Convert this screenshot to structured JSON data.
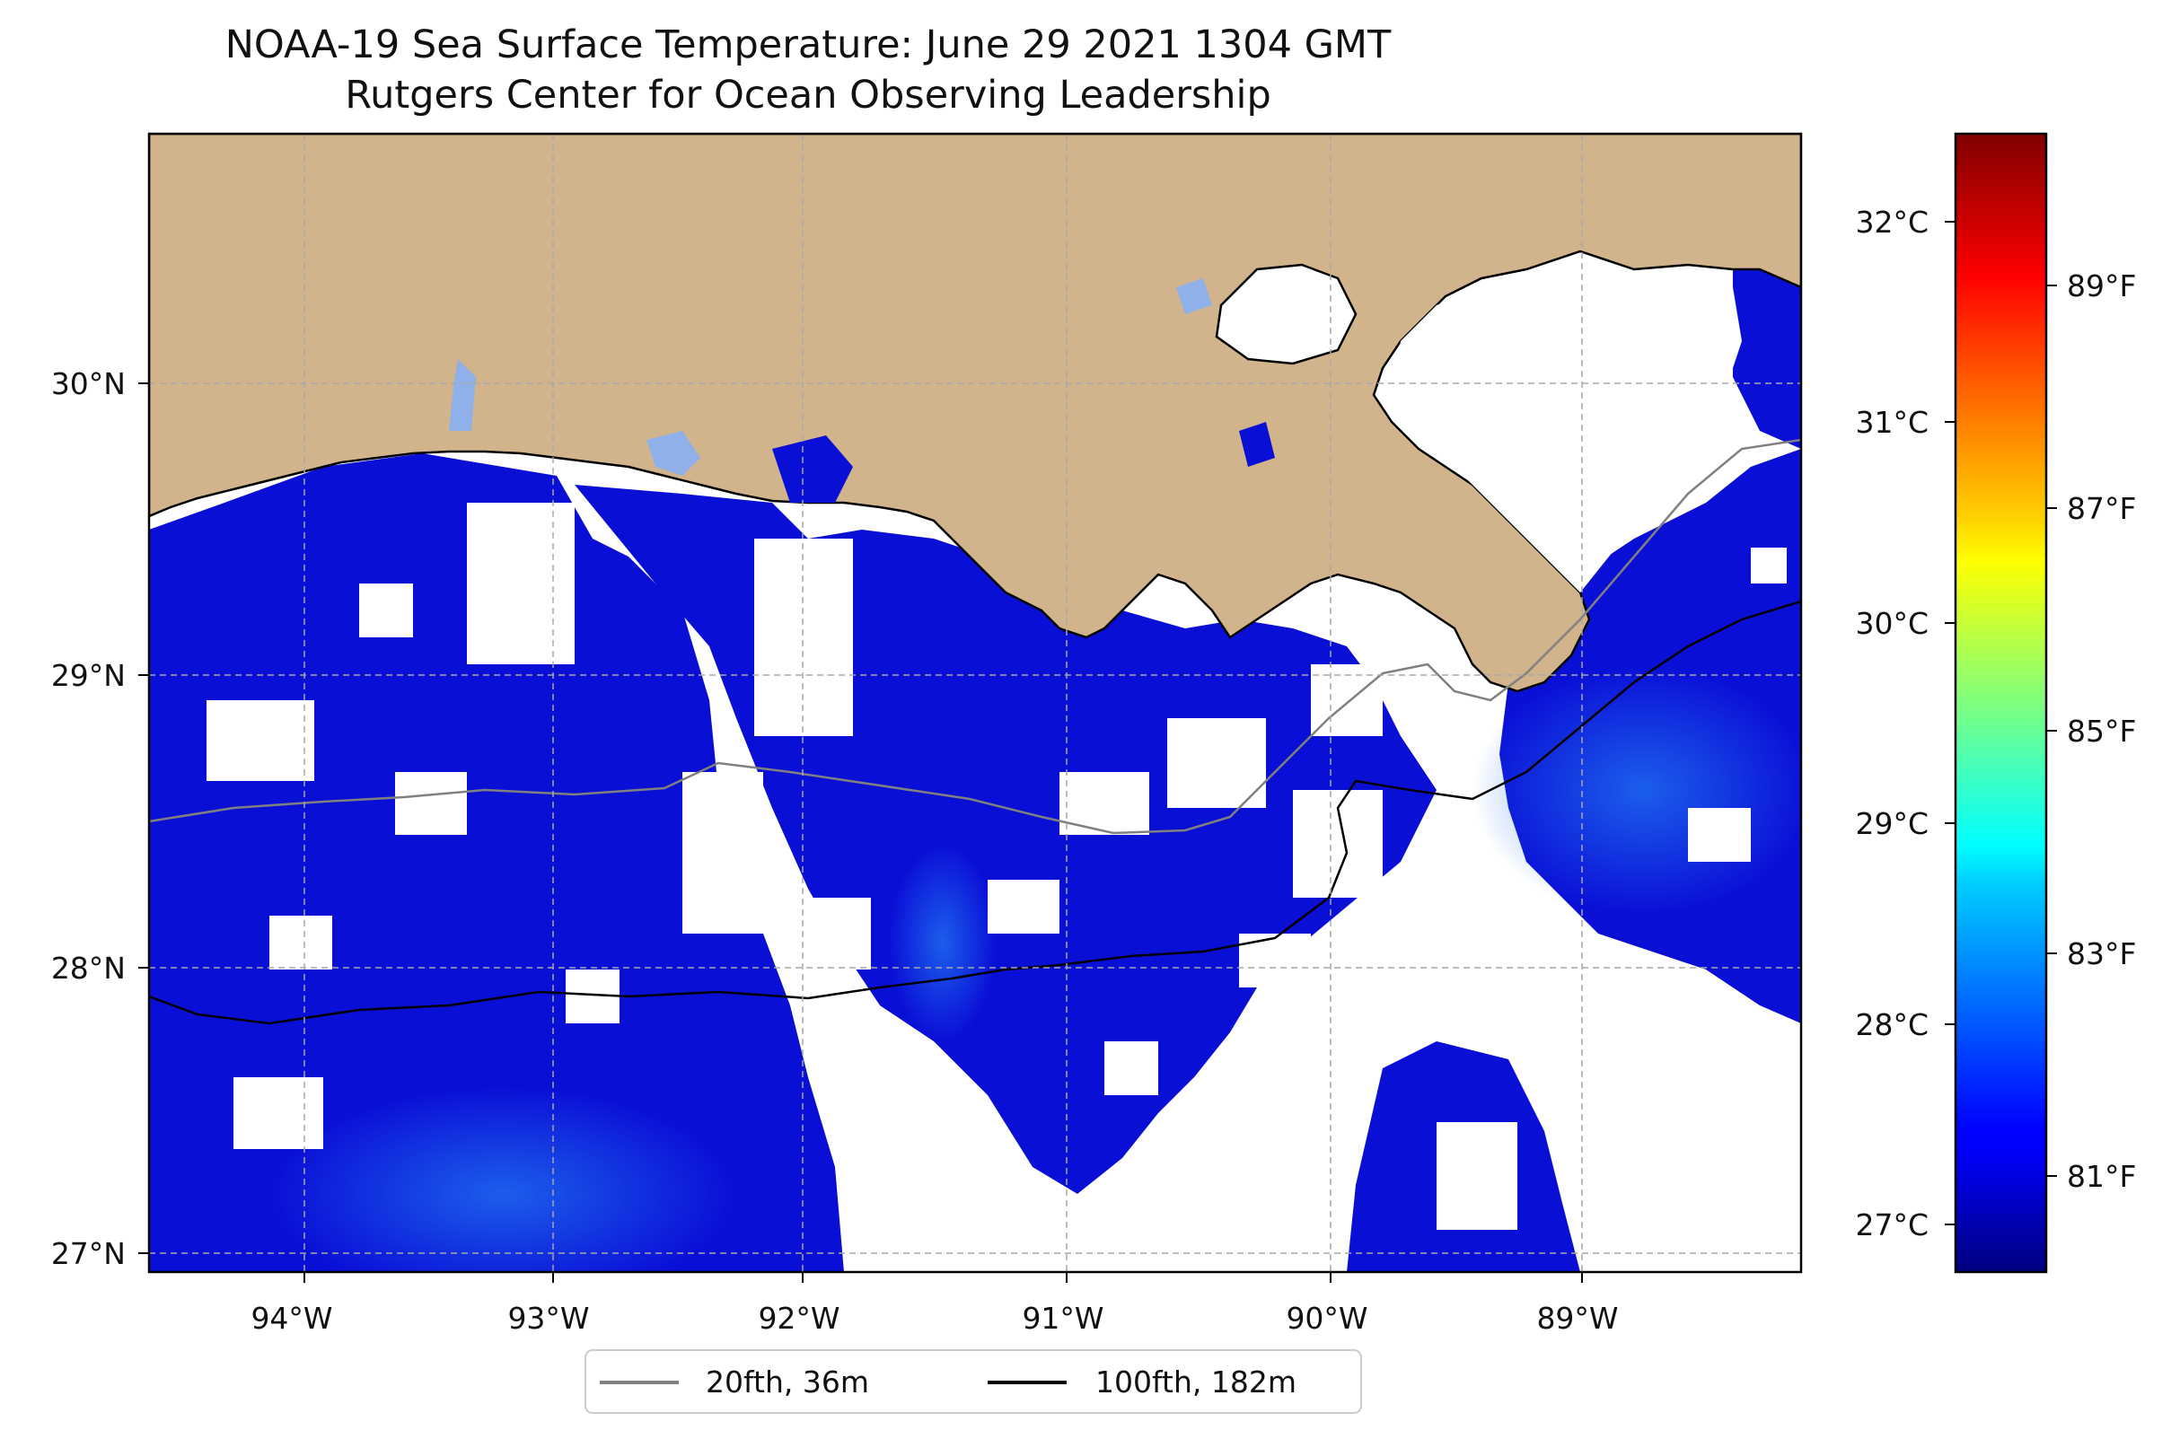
{
  "title": {
    "line1": "NOAA-19 Sea Surface Temperature: June 29 2021 1304 GMT",
    "line2": "Rutgers Center for Ocean Observing Leadership"
  },
  "map": {
    "lon_range": [
      -94.55,
      -88.25
    ],
    "lat_range": [
      26.95,
      30.85
    ],
    "lon_ticks": [
      {
        "value": -94,
        "label": "94°W"
      },
      {
        "value": -93,
        "label": "93°W"
      },
      {
        "value": -92,
        "label": "92°W"
      },
      {
        "value": -91,
        "label": "91°W"
      },
      {
        "value": -90,
        "label": "90°W"
      },
      {
        "value": -89,
        "label": "89°W"
      }
    ],
    "lat_ticks": [
      {
        "value": 27,
        "label": "27°N"
      },
      {
        "value": 28,
        "label": "28°N"
      },
      {
        "value": 29,
        "label": "29°N"
      },
      {
        "value": 30,
        "label": "30°N"
      }
    ],
    "gridlines": true,
    "land_color": "#d2b48c",
    "no_data_color": "#ffffff",
    "ocean_sst_color": "#0a0fd6",
    "coast_color": "#000000",
    "isobath_20_color": "#808080",
    "isobath_100_color": "#000000"
  },
  "colorbar": {
    "celsius_ticks": [
      {
        "value": 27,
        "label": "27°C"
      },
      {
        "value": 28,
        "label": "28°C"
      },
      {
        "value": 29,
        "label": "29°C"
      },
      {
        "value": 30,
        "label": "30°C"
      },
      {
        "value": 31,
        "label": "31°C"
      },
      {
        "value": 32,
        "label": "32°C"
      }
    ],
    "fahrenheit_ticks": [
      {
        "value": 81,
        "label": "81°F"
      },
      {
        "value": 83,
        "label": "83°F"
      },
      {
        "value": 85,
        "label": "85°F"
      },
      {
        "value": 87,
        "label": "87°F"
      },
      {
        "value": 89,
        "label": "89°F"
      }
    ],
    "range_c": [
      26.7,
      32.4
    ],
    "colormap": "jet"
  },
  "legend": {
    "items": [
      {
        "label": "20fth, 36m",
        "color": "#808080"
      },
      {
        "label": "100fth, 182m",
        "color": "#000000"
      }
    ],
    "placement": "bottom-center"
  }
}
